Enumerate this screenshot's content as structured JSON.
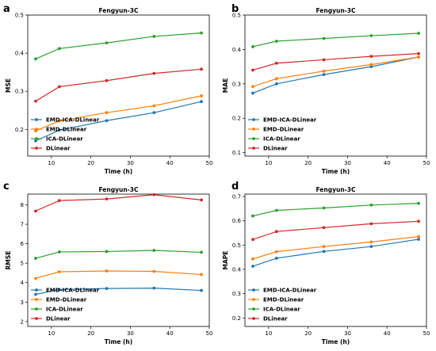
{
  "chart_data": [
    {
      "panel": "a",
      "type": "line",
      "title": "Fengyun-3C",
      "xlabel": "Time (h)",
      "ylabel": "MSE",
      "xlim": [
        4,
        50
      ],
      "ylim": [
        0.13,
        0.5
      ],
      "xticks": [
        "10",
        "20",
        "30",
        "40",
        "50"
      ],
      "yticks": [
        "0.2",
        "0.3",
        "0.4",
        "0.5"
      ],
      "x": [
        6,
        12,
        24,
        36,
        48
      ],
      "legend": "lower-left",
      "series": [
        {
          "name": "EMD-ICA-DLinear",
          "color": "#1f77b4",
          "values": [
            0.17,
            0.198,
            0.223,
            0.244,
            0.273
          ]
        },
        {
          "name": "EMD-DLinear",
          "color": "#ff7f0e",
          "values": [
            0.196,
            0.222,
            0.244,
            0.262,
            0.288
          ]
        },
        {
          "name": "ICA-DLinear",
          "color": "#2ca02c",
          "values": [
            0.385,
            0.412,
            0.427,
            0.444,
            0.453
          ]
        },
        {
          "name": "DLinear",
          "color": "#d62728",
          "values": [
            0.274,
            0.312,
            0.328,
            0.347,
            0.358
          ]
        }
      ]
    },
    {
      "panel": "b",
      "type": "line",
      "title": "Fengyun-3C",
      "xlabel": "Time (h)",
      "ylabel": "MAE",
      "xlim": [
        4,
        50
      ],
      "ylim": [
        0.09,
        0.5
      ],
      "xticks": [
        "10",
        "20",
        "30",
        "40",
        "50"
      ],
      "yticks": [
        "0.1",
        "0.2",
        "0.3",
        "0.4",
        "0.5"
      ],
      "x": [
        6,
        12,
        24,
        36,
        48
      ],
      "legend": "lower-left",
      "series": [
        {
          "name": "EMD-ICA-DLinear",
          "color": "#1f77b4",
          "values": [
            0.273,
            0.3,
            0.327,
            0.35,
            0.378
          ]
        },
        {
          "name": "EMD-DLinear",
          "color": "#ff7f0e",
          "values": [
            0.292,
            0.315,
            0.337,
            0.356,
            0.378
          ]
        },
        {
          "name": "ICA-DLinear",
          "color": "#2ca02c",
          "values": [
            0.408,
            0.424,
            0.432,
            0.44,
            0.447
          ]
        },
        {
          "name": "DLinear",
          "color": "#d62728",
          "values": [
            0.34,
            0.36,
            0.37,
            0.38,
            0.388
          ]
        }
      ]
    },
    {
      "panel": "c",
      "type": "line",
      "title": "Fengyun-3C",
      "xlabel": "Time (h)",
      "ylabel": "RMSE",
      "xlim": [
        4,
        50
      ],
      "ylim": [
        1.75,
        8.55
      ],
      "xticks": [
        "10",
        "20",
        "30",
        "40",
        "50"
      ],
      "yticks": [
        "2",
        "3",
        "4",
        "5",
        "6",
        "7",
        "8"
      ],
      "x": [
        6,
        12,
        24,
        36,
        48
      ],
      "legend": "lower-left",
      "series": [
        {
          "name": "EMD-ICA-DLinear",
          "color": "#1f77b4",
          "values": [
            3.4,
            3.65,
            3.7,
            3.72,
            3.6
          ]
        },
        {
          "name": "EMD-DLinear",
          "color": "#ff7f0e",
          "values": [
            4.22,
            4.56,
            4.6,
            4.58,
            4.42
          ]
        },
        {
          "name": "ICA-DLinear",
          "color": "#2ca02c",
          "values": [
            5.25,
            5.58,
            5.6,
            5.66,
            5.56
          ]
        },
        {
          "name": "DLinear",
          "color": "#d62728",
          "values": [
            7.68,
            8.22,
            8.3,
            8.52,
            8.25
          ]
        }
      ]
    },
    {
      "panel": "d",
      "type": "line",
      "title": "Fengyun-3C",
      "xlabel": "Time (h)",
      "ylabel": "MAPE",
      "xlim": [
        4,
        50
      ],
      "ylim": [
        0.165,
        0.71
      ],
      "xticks": [
        "10",
        "20",
        "30",
        "40",
        "50"
      ],
      "yticks": [
        "0.2",
        "0.3",
        "0.4",
        "0.5",
        "0.6",
        "0.7"
      ],
      "x": [
        6,
        12,
        24,
        36,
        48
      ],
      "legend": "lower-left",
      "series": [
        {
          "name": "EMD-ICA-DLinear",
          "color": "#1f77b4",
          "values": [
            0.413,
            0.446,
            0.474,
            0.494,
            0.524
          ]
        },
        {
          "name": "EMD-DLinear",
          "color": "#ff7f0e",
          "values": [
            0.443,
            0.473,
            0.494,
            0.513,
            0.535
          ]
        },
        {
          "name": "ICA-DLinear",
          "color": "#2ca02c",
          "values": [
            0.62,
            0.643,
            0.653,
            0.665,
            0.672
          ]
        },
        {
          "name": "DLinear",
          "color": "#d62728",
          "values": [
            0.523,
            0.556,
            0.572,
            0.588,
            0.598
          ]
        }
      ]
    }
  ]
}
